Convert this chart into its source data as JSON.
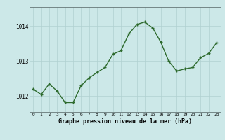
{
  "x": [
    0,
    1,
    2,
    3,
    4,
    5,
    6,
    7,
    8,
    9,
    10,
    11,
    12,
    13,
    14,
    15,
    16,
    17,
    18,
    19,
    20,
    21,
    22,
    23
  ],
  "y": [
    1012.2,
    1012.05,
    1012.35,
    1012.15,
    1011.82,
    1011.82,
    1012.3,
    1012.52,
    1012.68,
    1012.82,
    1013.2,
    1013.3,
    1013.78,
    1014.05,
    1014.12,
    1013.95,
    1013.55,
    1013.0,
    1012.72,
    1012.78,
    1012.82,
    1013.1,
    1013.22,
    1013.52
  ],
  "line_color": "#2d6a2d",
  "marker_color": "#2d6a2d",
  "bg_color": "#cce8e8",
  "grid_color": "#b0d0d0",
  "xlabel": "Graphe pression niveau de la mer (hPa)",
  "ytick_labels": [
    "1012",
    "1013",
    "1014"
  ],
  "ytick_vals": [
    1012,
    1013,
    1014
  ],
  "ylim": [
    1011.55,
    1014.55
  ],
  "xlim": [
    -0.5,
    23.5
  ],
  "xtick_fontsize": 4.5,
  "ytick_fontsize": 5.5,
  "xlabel_fontsize": 6.0
}
